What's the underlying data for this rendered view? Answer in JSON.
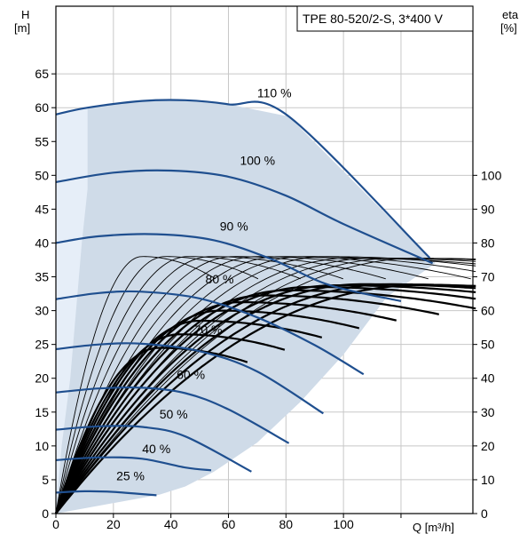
{
  "chart_data": {
    "type": "line",
    "title": "TPE 80-520/2-S, 3*400 V",
    "x_axis": {
      "label": "Q [m³/h]",
      "range": [
        0,
        145
      ],
      "ticks": [
        0,
        20,
        40,
        60,
        80,
        100
      ],
      "gridlines": [
        0,
        20,
        40,
        60,
        80,
        100,
        120
      ]
    },
    "y_axis_left": {
      "label_line1": "H",
      "label_line2": "[m]",
      "range": [
        0,
        75
      ],
      "ticks": [
        0,
        5,
        10,
        15,
        20,
        25,
        30,
        35,
        40,
        45,
        50,
        55,
        60,
        65
      ]
    },
    "y_axis_right": {
      "label_line1": "eta",
      "label_line2": "[%]",
      "range": [
        0,
        150
      ],
      "ticks": [
        0,
        10,
        20,
        30,
        40,
        50,
        60,
        70,
        80,
        90,
        100
      ]
    },
    "grid": true,
    "colors": {
      "curve": "#1f4f8f",
      "region": "#cfdbe8",
      "region_light": "#e6eef8",
      "eta": "#000000",
      "grid": "#c8c8c8"
    },
    "operating_region": [
      [
        0,
        59
      ],
      [
        11,
        60
      ],
      [
        30,
        61
      ],
      [
        45,
        61.1
      ],
      [
        60,
        60.5
      ],
      [
        81,
        58.7
      ],
      [
        130,
        37.8
      ],
      [
        132,
        37
      ],
      [
        115,
        32
      ],
      [
        100,
        23.5
      ],
      [
        85,
        16.5
      ],
      [
        70,
        10.5
      ],
      [
        55,
        6.2
      ],
      [
        45,
        4
      ],
      [
        36,
        2.8
      ],
      [
        0,
        0
      ]
    ],
    "min_speed_area": [
      [
        0,
        59
      ],
      [
        11,
        60
      ],
      [
        11,
        48
      ],
      [
        9,
        40
      ],
      [
        7,
        30
      ],
      [
        5,
        20
      ],
      [
        2,
        10
      ],
      [
        0,
        0
      ]
    ],
    "series": [
      {
        "name": "110 %",
        "label_pos": [
          70,
          61
        ],
        "points": [
          [
            0,
            59
          ],
          [
            11,
            60
          ],
          [
            30,
            61
          ],
          [
            45,
            61.1
          ],
          [
            60,
            60.5
          ],
          [
            81,
            58.7
          ],
          [
            130,
            37.8
          ]
        ]
      },
      {
        "name": "100 %",
        "label_pos": [
          64,
          51
        ],
        "points": [
          [
            0,
            49
          ],
          [
            20,
            50.4
          ],
          [
            40,
            50.7
          ],
          [
            60,
            49.8
          ],
          [
            80,
            47
          ],
          [
            100,
            42.8
          ],
          [
            131,
            37
          ]
        ]
      },
      {
        "name": "90 %",
        "label_pos": [
          57,
          41.3
        ],
        "points": [
          [
            0,
            40
          ],
          [
            15,
            41
          ],
          [
            35,
            41.3
          ],
          [
            55,
            40.4
          ],
          [
            75,
            37.6
          ],
          [
            95,
            33.8
          ],
          [
            120,
            31.4
          ]
        ]
      },
      {
        "name": "80 %",
        "label_pos": [
          52,
          33.5
        ],
        "points": [
          [
            0,
            31.7
          ],
          [
            15,
            32.6
          ],
          [
            30,
            32.8
          ],
          [
            50,
            31.8
          ],
          [
            70,
            29
          ],
          [
            90,
            24.9
          ],
          [
            107,
            20.6
          ]
        ]
      },
      {
        "name": "70 %",
        "label_pos": [
          48,
          26
        ],
        "points": [
          [
            0,
            24.3
          ],
          [
            15,
            25
          ],
          [
            30,
            25.1
          ],
          [
            50,
            24
          ],
          [
            70,
            21
          ],
          [
            93,
            14.8
          ]
        ]
      },
      {
        "name": "60 %",
        "label_pos": [
          42,
          19.4
        ],
        "points": [
          [
            0,
            17.9
          ],
          [
            15,
            18.5
          ],
          [
            30,
            18.6
          ],
          [
            45,
            17.8
          ],
          [
            60,
            15.4
          ],
          [
            81,
            10.4
          ]
        ]
      },
      {
        "name": "50 %",
        "label_pos": [
          36,
          13.5
        ],
        "points": [
          [
            0,
            12.4
          ],
          [
            15,
            12.9
          ],
          [
            30,
            12.8
          ],
          [
            45,
            11.4
          ],
          [
            68,
            6.2
          ]
        ]
      },
      {
        "name": "40 %",
        "label_pos": [
          30,
          8.4
        ],
        "points": [
          [
            0,
            7.9
          ],
          [
            15,
            8.3
          ],
          [
            30,
            8.1
          ],
          [
            45,
            6.8
          ],
          [
            54,
            6.4
          ]
        ]
      },
      {
        "name": "25 %",
        "label_pos": [
          21,
          4.4
        ],
        "points": [
          [
            0,
            3.1
          ],
          [
            10,
            3.3
          ],
          [
            20,
            3.2
          ],
          [
            35,
            2.7
          ]
        ]
      }
    ],
    "eta_curves_thin": [
      {
        "peak_q": 30,
        "peak_eta": 76
      },
      {
        "peak_q": 38,
        "peak_eta": 76
      },
      {
        "peak_q": 46,
        "peak_eta": 76
      },
      {
        "peak_q": 54,
        "peak_eta": 76
      },
      {
        "peak_q": 62,
        "peak_eta": 76
      },
      {
        "peak_q": 70,
        "peak_eta": 76
      },
      {
        "peak_q": 78,
        "peak_eta": 76
      },
      {
        "peak_q": 86,
        "peak_eta": 76
      },
      {
        "peak_q": 94,
        "peak_eta": 76
      },
      {
        "peak_q": 102,
        "peak_eta": 75.5
      },
      {
        "peak_q": 110,
        "peak_eta": 75.5
      },
      {
        "peak_q": 118,
        "peak_eta": 75.5
      },
      {
        "peak_q": 126,
        "peak_eta": 75.5
      }
    ],
    "eta_curves_thick": [
      {
        "peak_q": 36,
        "peak_eta": 49
      },
      {
        "peak_q": 43,
        "peak_eta": 53
      },
      {
        "peak_q": 50,
        "peak_eta": 57
      },
      {
        "peak_q": 57,
        "peak_eta": 60
      },
      {
        "peak_q": 64,
        "peak_eta": 62.5
      },
      {
        "peak_q": 72,
        "peak_eta": 64.5
      },
      {
        "peak_q": 80,
        "peak_eta": 66
      },
      {
        "peak_q": 88,
        "peak_eta": 67
      },
      {
        "peak_q": 97,
        "peak_eta": 67.5
      },
      {
        "peak_q": 106,
        "peak_eta": 67.8
      },
      {
        "peak_q": 116,
        "peak_eta": 67.8
      },
      {
        "peak_q": 126,
        "peak_eta": 67.5
      }
    ]
  }
}
